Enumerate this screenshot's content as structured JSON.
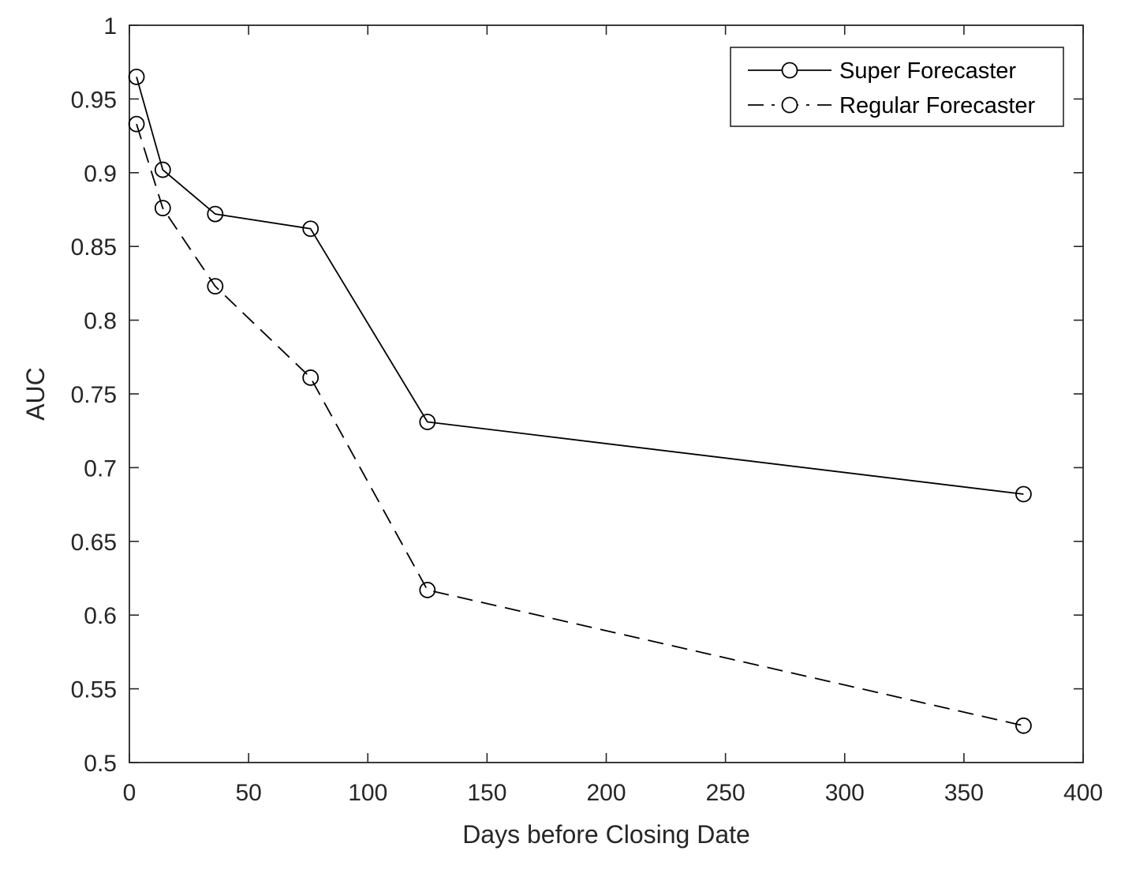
{
  "chart_data": {
    "type": "line",
    "title": "",
    "xlabel": "Days before Closing Date",
    "ylabel": "AUC",
    "xlim": [
      0,
      400
    ],
    "ylim": [
      0.5,
      1
    ],
    "xticks": [
      0,
      50,
      100,
      150,
      200,
      250,
      300,
      350,
      400
    ],
    "xtick_labels": [
      "0",
      "50",
      "100",
      "150",
      "200",
      "250",
      "300",
      "350",
      "400"
    ],
    "yticks": [
      0.5,
      0.55,
      0.6,
      0.65,
      0.7,
      0.75,
      0.8,
      0.85,
      0.9,
      0.95,
      1
    ],
    "ytick_labels": [
      "0.5",
      "0.55",
      "0.6",
      "0.65",
      "0.7",
      "0.75",
      "0.8",
      "0.85",
      "0.9",
      "0.95",
      "1"
    ],
    "grid": false,
    "legend_position": "top-right",
    "series": [
      {
        "name": "Super Forecaster",
        "line_style": "solid",
        "marker": "circle",
        "color": "#000000",
        "x": [
          3,
          14,
          36,
          76,
          125,
          375
        ],
        "y": [
          0.965,
          0.902,
          0.872,
          0.862,
          0.731,
          0.682
        ]
      },
      {
        "name": "Regular Forecaster",
        "line_style": "dashed",
        "marker": "circle",
        "color": "#000000",
        "x": [
          3,
          14,
          36,
          76,
          125,
          375
        ],
        "y": [
          0.933,
          0.876,
          0.823,
          0.761,
          0.617,
          0.525
        ]
      }
    ]
  }
}
